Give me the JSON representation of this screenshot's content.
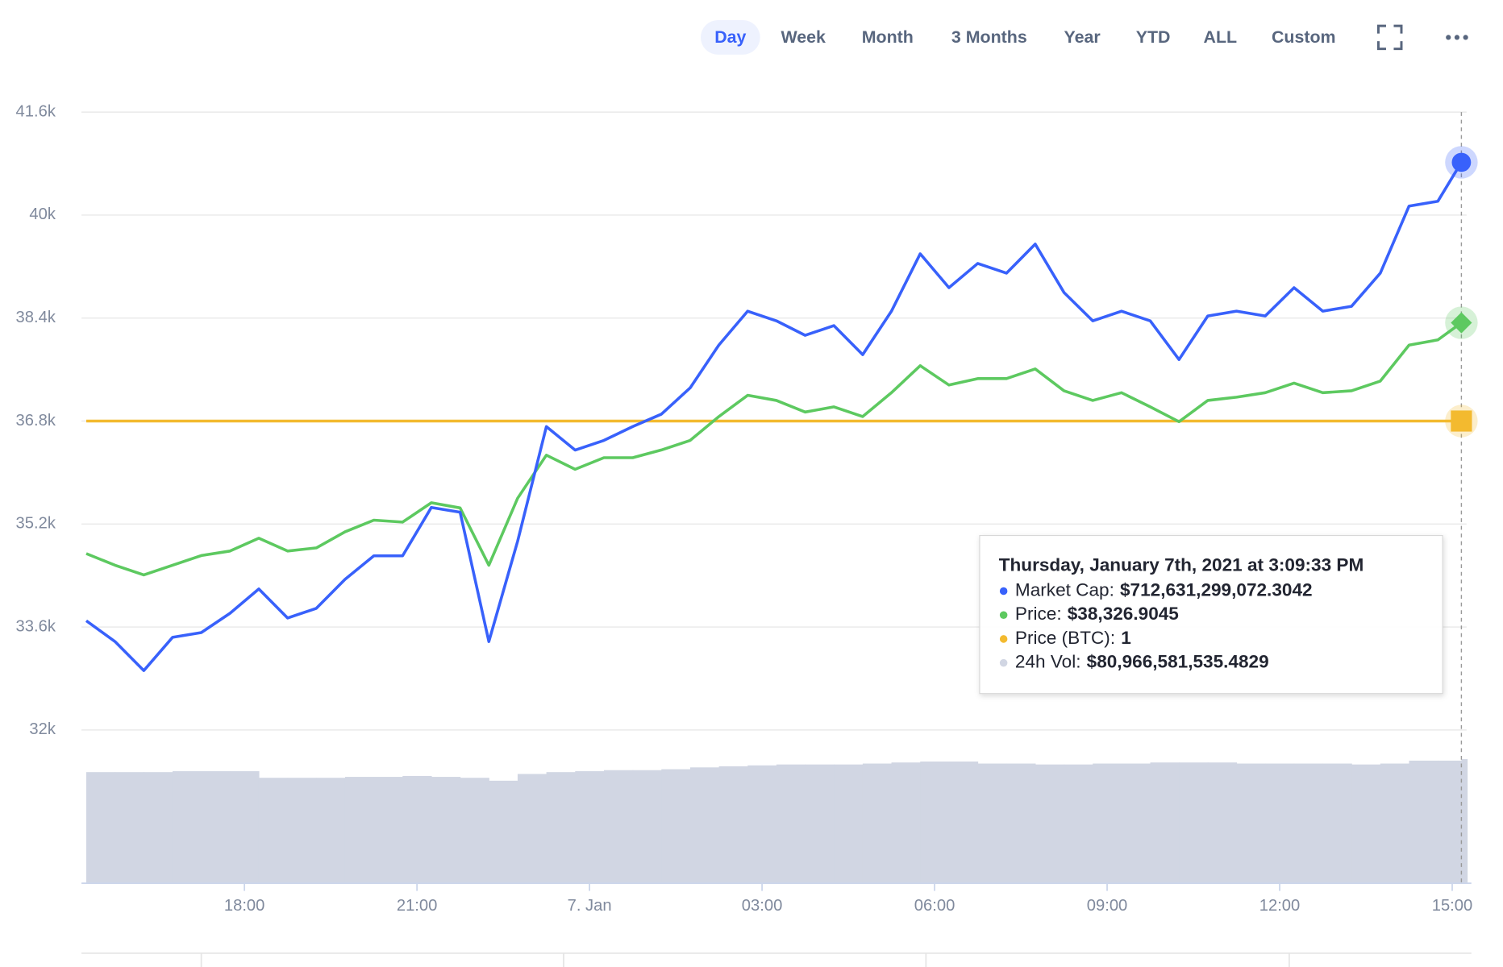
{
  "toolbar": {
    "ranges": [
      "Day",
      "Week",
      "Month",
      "3 Months",
      "Year",
      "YTD",
      "ALL",
      "Custom"
    ],
    "selected": 0
  },
  "chart_data": {
    "type": "line",
    "x": [
      -8.75,
      -8.25,
      -7.75,
      -7.25,
      -6.75,
      -6.25,
      -5.75,
      -5.25,
      -4.75,
      -4.25,
      -3.75,
      -3.25,
      -2.75,
      -2.25,
      -1.75,
      -1.25,
      -0.75,
      -0.25,
      0.25,
      0.75,
      1.25,
      1.75,
      2.25,
      2.75,
      3.25,
      3.75,
      4.25,
      4.75,
      5.25,
      5.75,
      6.25,
      6.75,
      7.25,
      7.75,
      8.25,
      8.75,
      9.25,
      9.75,
      10.25,
      10.75,
      11.25,
      11.75,
      12.25,
      12.75,
      13.25,
      13.75,
      14.25,
      14.75,
      15.16
    ],
    "xlim": [
      -8.75,
      15.25
    ],
    "xticks": [
      {
        "value": -6,
        "label": "18:00"
      },
      {
        "value": -3,
        "label": "21:00"
      },
      {
        "value": 0,
        "label": "7. Jan"
      },
      {
        "value": 3,
        "label": "03:00"
      },
      {
        "value": 6,
        "label": "06:00"
      },
      {
        "value": 9,
        "label": "09:00"
      },
      {
        "value": 12,
        "label": "12:00"
      },
      {
        "value": 15,
        "label": "15:00"
      }
    ],
    "ylim": [
      32000,
      41600
    ],
    "yticks": [
      {
        "value": 32000,
        "label": "32k"
      },
      {
        "value": 33600,
        "label": "33.6k"
      },
      {
        "value": 35200,
        "label": "35.2k"
      },
      {
        "value": 36800,
        "label": "36.8k"
      },
      {
        "value": 38400,
        "label": "38.4k"
      },
      {
        "value": 40000,
        "label": "40k"
      },
      {
        "value": 41600,
        "label": "41.6k"
      }
    ],
    "y2lim": [
      630500000000,
      719900000000
    ],
    "y3lim": [
      0,
      2
    ],
    "vollim": [
      0,
      100000000000
    ],
    "grid": true,
    "series": [
      {
        "color": "#3861fb",
        "axis": "y2",
        "kind": "line",
        "marker": "circle",
        "values": [
          646300000000,
          643300000000,
          639100000000,
          643900000000,
          644600000000,
          647400000000,
          650900000000,
          646700000000,
          648100000000,
          652300000000,
          655700000000,
          655700000000,
          662700000000,
          662000000000,
          643300000000,
          657800000000,
          674400000000,
          671000000000,
          672400000000,
          674400000000,
          676200000000,
          680000000000,
          686200000000,
          691100000000,
          689700000000,
          687600000000,
          689000000000,
          684800000000,
          691100000000,
          699400000000,
          694500000000,
          698000000000,
          696600000000,
          700800000000,
          693800000000,
          689700000000,
          691100000000,
          689700000000,
          684100000000,
          690400000000,
          691100000000,
          690400000000,
          694500000000,
          691100000000,
          691800000000,
          696600000000,
          706300000000,
          707000000000,
          712631299072.3042
        ]
      },
      {
        "color": "#5dc960",
        "axis": "y",
        "kind": "line",
        "marker": "diamond",
        "values": [
          34740,
          34560,
          34410,
          34560,
          34710,
          34780,
          34980,
          34780,
          34830,
          35080,
          35260,
          35230,
          35530,
          35450,
          34560,
          35600,
          36270,
          36050,
          36230,
          36230,
          36350,
          36500,
          36870,
          37200,
          37120,
          36940,
          37020,
          36870,
          37240,
          37660,
          37360,
          37460,
          37460,
          37610,
          37270,
          37120,
          37240,
          37020,
          36790,
          37120,
          37170,
          37240,
          37390,
          37240,
          37270,
          37420,
          37980,
          38060,
          38326.9045
        ]
      },
      {
        "color": "#f3ba2f",
        "axis": "y3",
        "kind": "line",
        "marker": "square",
        "values": [
          1,
          1,
          1,
          1,
          1,
          1,
          1,
          1,
          1,
          1,
          1,
          1,
          1,
          1,
          1,
          1,
          1,
          1,
          1,
          1,
          1,
          1,
          1,
          1,
          1,
          1,
          1,
          1,
          1,
          1,
          1,
          1,
          1,
          1,
          1,
          1,
          1,
          1,
          1,
          1,
          1,
          1,
          1,
          1,
          1,
          1,
          1,
          1,
          1
        ]
      },
      {
        "color": "#d1d6e3",
        "axis": "vol",
        "kind": "column",
        "values": [
          72500000000,
          72500000000,
          72500000000,
          73100000000,
          73100000000,
          73100000000,
          68800000000,
          68800000000,
          68800000000,
          69400000000,
          69400000000,
          70000000000,
          69400000000,
          68800000000,
          66900000000,
          71300000000,
          72500000000,
          73100000000,
          73800000000,
          73800000000,
          74400000000,
          75600000000,
          76300000000,
          76900000000,
          77500000000,
          77500000000,
          77500000000,
          78100000000,
          78800000000,
          79400000000,
          79400000000,
          78100000000,
          78100000000,
          77500000000,
          77500000000,
          78100000000,
          78100000000,
          78800000000,
          78800000000,
          78800000000,
          78100000000,
          78100000000,
          78100000000,
          78100000000,
          77500000000,
          78100000000,
          80000000000,
          80000000000,
          80966581535.4829
        ]
      }
    ],
    "tooltip": {
      "title": "Thursday, January 7th, 2021 at 3:09:33 PM",
      "rows": [
        {
          "label": "Market Cap:",
          "value": "$712,631,299,072.3042"
        },
        {
          "label": "Price:",
          "value": "$38,326.9045"
        },
        {
          "label": "Price (BTC):",
          "value": "1"
        },
        {
          "label": "24h Vol:",
          "value": "$80,966,581,535.4829"
        }
      ]
    }
  }
}
